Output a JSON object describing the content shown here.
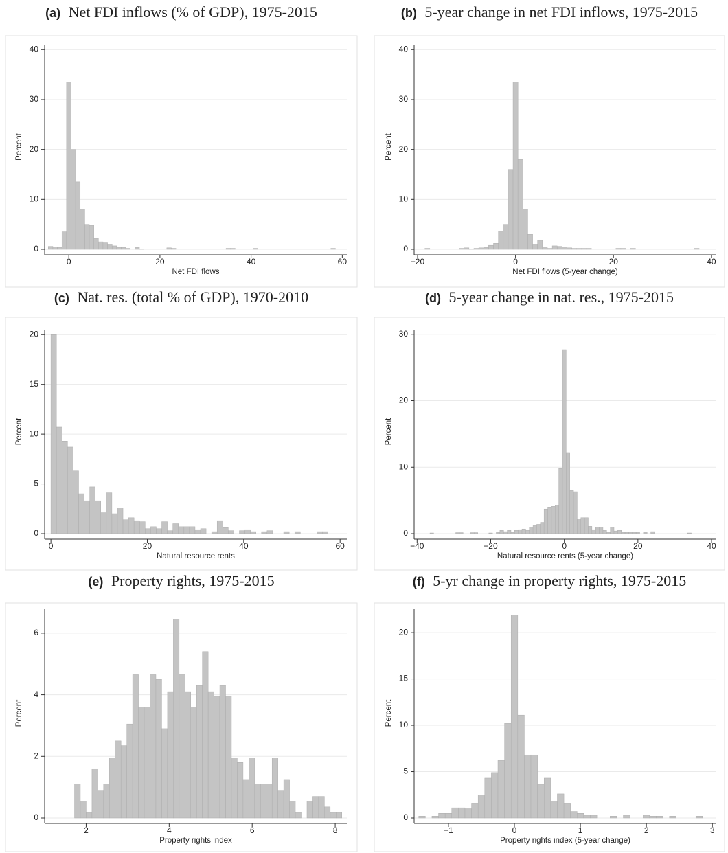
{
  "chart_data": [
    {
      "type": "histogram",
      "label": "(a)",
      "title": "Net FDI inflows (% of GDP), 1975-2015",
      "xlabel": "Net FDI flows",
      "ylabel": "Percent",
      "color": "#c4c4c4",
      "grid": true,
      "bins": [
        -4.5,
        -3.5,
        -2.5,
        -1.5,
        -0.5,
        0.5,
        1.5,
        2.5,
        3.5,
        4.5,
        5.5,
        6.5,
        7.5,
        8.5,
        9.5,
        10.5,
        11.5,
        12.5,
        13.5,
        14.5,
        15.5,
        16.5,
        17.5,
        18.5,
        19.5,
        20.5,
        21.5,
        22.5,
        23.5,
        24.5,
        25.5,
        26.5,
        27.5,
        28.5,
        29.5,
        30.5,
        31.5,
        32.5,
        33.5,
        34.5,
        35.5,
        36.5,
        37.5,
        38.5,
        39.5,
        40.5,
        41.5,
        42.5,
        43.5,
        44.5,
        45.5,
        46.5,
        47.5,
        48.5,
        49.5,
        50.5,
        51.5,
        52.5,
        53.5,
        54.5,
        55.5,
        56.5,
        57.5,
        58.5
      ],
      "counts": [
        0.6,
        0.5,
        0.4,
        3.5,
        33.5,
        20,
        13.5,
        8,
        5,
        4.8,
        2.2,
        1.5,
        1.3,
        1,
        0.7,
        0.4,
        0.4,
        0.2,
        0,
        0.4,
        0.1,
        0,
        0,
        0,
        0,
        0,
        0.3,
        0.2,
        0,
        0,
        0,
        0,
        0,
        0,
        0,
        0,
        0,
        0,
        0,
        0.2,
        0.2,
        0,
        0,
        0,
        0,
        0.2,
        0,
        0,
        0,
        0,
        0,
        0,
        0,
        0,
        0,
        0,
        0,
        0,
        0,
        0,
        0,
        0,
        0.2
      ],
      "xlim": [
        -5.3,
        61
      ],
      "ylim": [
        0,
        41
      ],
      "xticks": [
        0,
        20,
        40,
        60
      ],
      "yticks": [
        0,
        10,
        20,
        30,
        40
      ]
    },
    {
      "type": "histogram",
      "label": "(b)",
      "title": "5-year change in net FDI inflows, 1975-2015",
      "xlabel": "Net FDI flows (5-year change)",
      "ylabel": "Percent",
      "color": "#c4c4c4",
      "grid": true,
      "bins": [
        -18.5,
        -17.5,
        -16.5,
        -15.5,
        -14.5,
        -13.5,
        -12.5,
        -11.5,
        -10.5,
        -9.5,
        -8.5,
        -7.5,
        -6.5,
        -5.5,
        -4.5,
        -3.5,
        -2.5,
        -1.5,
        -0.5,
        0.5,
        1.5,
        2.5,
        3.5,
        4.5,
        5.5,
        6.5,
        7.5,
        8.5,
        9.5,
        10.5,
        11.5,
        12.5,
        13.5,
        14.5,
        15.5,
        16.5,
        17.5,
        18.5,
        19.5,
        20.5,
        21.5,
        22.5,
        23.5,
        24.5,
        25.5,
        26.5,
        27.5,
        28.5,
        29.5,
        30.5,
        31.5,
        32.5,
        33.5,
        34.5,
        35.5,
        36.5,
        37.5
      ],
      "counts": [
        0.2,
        0,
        0,
        0,
        0,
        0,
        0,
        0.2,
        0.3,
        0.1,
        0.2,
        0.3,
        0.4,
        0.8,
        1.2,
        3.6,
        5,
        16,
        33.5,
        18,
        8,
        3,
        1,
        1.8,
        0.5,
        0.2,
        0.7,
        0.6,
        0.5,
        0.3,
        0.2,
        0.2,
        0.2,
        0.2,
        0,
        0,
        0,
        0,
        0,
        0.2,
        0.2,
        0,
        0.2,
        0,
        0,
        0,
        0,
        0,
        0,
        0,
        0,
        0,
        0,
        0,
        0,
        0.2
      ],
      "xlim": [
        -20.7,
        41
      ],
      "ylim": [
        0,
        41
      ],
      "xticks": [
        {
          "value": -20,
          "label": "−20"
        },
        0,
        20,
        40
      ],
      "yticks": [
        0,
        10,
        20,
        30,
        40
      ]
    },
    {
      "type": "histogram",
      "label": "(c)",
      "title": "Nat. res. (total % of GDP), 1970-2010",
      "xlabel": "Natural resource rents",
      "ylabel": "Percent",
      "color": "#c4c4c4",
      "grid": true,
      "bins": [
        0,
        1.15,
        2.3,
        3.45,
        4.6,
        5.75,
        6.9,
        8.05,
        9.2,
        10.35,
        11.5,
        12.65,
        13.8,
        14.95,
        16.1,
        17.25,
        18.4,
        19.55,
        20.7,
        21.85,
        23,
        24.15,
        25.3,
        26.45,
        27.6,
        28.75,
        29.9,
        31.05,
        32.2,
        33.35,
        34.5,
        35.65,
        36.8,
        37.95,
        39.1,
        40.25,
        41.4,
        42.55,
        43.7,
        44.85,
        46,
        47.15,
        48.3,
        49.45,
        50.6,
        51.75,
        52.9,
        54.05,
        55.2,
        56.35,
        57.5
      ],
      "counts": [
        20,
        10.7,
        9.3,
        8.7,
        6.3,
        4,
        3.3,
        4.7,
        3.3,
        2.1,
        4.1,
        2,
        2.6,
        1.4,
        1.6,
        1.3,
        1.2,
        0.5,
        0.7,
        0.5,
        1.2,
        0.3,
        1,
        0.7,
        0.7,
        0.7,
        0.4,
        0.5,
        0,
        0.2,
        1.3,
        0.6,
        0.3,
        0,
        0.3,
        0.4,
        0.2,
        0,
        0.2,
        0.3,
        0,
        0,
        0.2,
        0,
        0.2,
        0,
        0,
        0,
        0.2,
        0.2
      ],
      "xlim": [
        -1.3,
        61.4
      ],
      "ylim": [
        0,
        20.5
      ],
      "xticks": [
        0,
        20,
        40,
        60
      ],
      "yticks": [
        0,
        5,
        10,
        15,
        20
      ]
    },
    {
      "type": "histogram",
      "label": "(d)",
      "title": "5-year change in nat. res., 1975-2015",
      "xlabel": "Natural resource rents (5-year change)",
      "ylabel": "Percent",
      "color": "#c4c4c4",
      "grid": true,
      "bins": [
        -36.5,
        -35.5,
        -34.5,
        -33.5,
        -32.5,
        -31.5,
        -30.5,
        -29.5,
        -28.5,
        -27.5,
        -26.5,
        -25.5,
        -24.5,
        -23.5,
        -22.5,
        -21.5,
        -20.5,
        -19.5,
        -18.5,
        -17.5,
        -16.5,
        -15.5,
        -14.5,
        -13.5,
        -12.5,
        -11.5,
        -10.5,
        -9.5,
        -8.5,
        -7.5,
        -6.5,
        -5.5,
        -4.5,
        -3.5,
        -2.5,
        -1.5,
        -0.5,
        0.5,
        1.5,
        2.5,
        3.5,
        4.5,
        5.5,
        6.5,
        7.5,
        8.5,
        9.5,
        10.5,
        11.5,
        12.5,
        13.5,
        14.5,
        15.5,
        16.5,
        17.5,
        18.5,
        19.5,
        20.5,
        21.5,
        22.5,
        23.5,
        24.5,
        25.5,
        26.5,
        27.5,
        28.5,
        29.5,
        30.5,
        31.5,
        32.5,
        33.5,
        34.5
      ],
      "counts": [
        0.1,
        0,
        0,
        0,
        0,
        0,
        0,
        0.15,
        0.15,
        0,
        0,
        0.15,
        0.15,
        0,
        0,
        0,
        0.1,
        0,
        0.2,
        0.5,
        0.3,
        0.5,
        0.2,
        0.5,
        0.6,
        0.7,
        0.5,
        1,
        1.2,
        1.4,
        1.7,
        3.7,
        4,
        4.1,
        4.3,
        9.8,
        27.7,
        12.2,
        6.5,
        6.3,
        2.2,
        2.4,
        2.4,
        1.1,
        0.6,
        1,
        1,
        0.5,
        0.2,
        1,
        0.4,
        0.5,
        0.2,
        0.2,
        0.2,
        0.2,
        0.2,
        0,
        0.2,
        0,
        0.3,
        0,
        0,
        0,
        0,
        0,
        0,
        0,
        0,
        0,
        0.1
      ],
      "xlim": [
        -40.8,
        41.3
      ],
      "ylim": [
        0,
        30.7
      ],
      "xticks": [
        {
          "value": -40,
          "label": "−40"
        },
        {
          "value": -20,
          "label": "−20"
        },
        0,
        20,
        40
      ],
      "yticks": [
        0,
        10,
        20,
        30
      ]
    },
    {
      "type": "histogram",
      "label": "(e)",
      "title": "Property rights, 1975-2015",
      "xlabel": "Property rights index",
      "ylabel": "Percent",
      "color": "#c4c4c4",
      "grid": true,
      "bins": [
        1.72,
        1.86,
        2,
        2.14,
        2.28,
        2.42,
        2.56,
        2.7,
        2.84,
        2.98,
        3.12,
        3.26,
        3.4,
        3.54,
        3.68,
        3.82,
        3.96,
        4.1,
        4.24,
        4.38,
        4.52,
        4.66,
        4.8,
        4.94,
        5.08,
        5.22,
        5.36,
        5.5,
        5.64,
        5.78,
        5.92,
        6.06,
        6.2,
        6.34,
        6.48,
        6.62,
        6.76,
        6.9,
        7.04,
        7.18,
        7.32,
        7.46,
        7.6,
        7.74,
        7.88,
        8.02,
        8.16
      ],
      "counts": [
        1.1,
        0.55,
        0.18,
        1.6,
        0.9,
        1.1,
        1.95,
        2.5,
        2.35,
        3.05,
        4.65,
        3.6,
        3.6,
        4.65,
        4.5,
        2.9,
        4.1,
        6.45,
        4.65,
        4.1,
        3.6,
        4.3,
        5.4,
        4.1,
        3.95,
        4.3,
        3.95,
        1.95,
        1.8,
        1.25,
        1.95,
        1.1,
        1.1,
        1.1,
        1.95,
        0.9,
        1.25,
        0.55,
        0.18,
        0,
        0.55,
        0.7,
        0.7,
        0.36,
        0.18,
        0.18
      ],
      "xlim": [
        1,
        8.28
      ],
      "ylim": [
        0,
        6.8
      ],
      "xticks": [
        2,
        4,
        6,
        8
      ],
      "yticks": [
        0,
        2,
        4,
        6
      ]
    },
    {
      "type": "histogram",
      "label": "(f)",
      "title": "5-yr change in property rights, 1975-2015",
      "xlabel": "Property rights index (5-year change)",
      "ylabel": "Percent",
      "color": "#c4c4c4",
      "grid": true,
      "bins": [
        -1.45,
        -1.35,
        -1.25,
        -1.15,
        -1.05,
        -0.95,
        -0.85,
        -0.75,
        -0.65,
        -0.55,
        -0.45,
        -0.35,
        -0.25,
        -0.15,
        -0.05,
        0.05,
        0.15,
        0.25,
        0.35,
        0.45,
        0.55,
        0.65,
        0.75,
        0.85,
        0.95,
        1.05,
        1.15,
        1.25,
        1.35,
        1.45,
        1.55,
        1.65,
        1.75,
        1.85,
        1.95,
        2.05,
        2.15,
        2.25,
        2.35,
        2.45,
        2.55,
        2.65,
        2.75,
        2.85
      ],
      "counts": [
        0.2,
        0,
        0.2,
        0.5,
        0.5,
        1.1,
        1.1,
        1,
        1.6,
        2.5,
        4.3,
        4.9,
        6.2,
        10.2,
        21.9,
        11.1,
        6.8,
        6.8,
        3.6,
        4.3,
        1.8,
        2.6,
        1.6,
        0.7,
        0.5,
        0.3,
        0.3,
        0,
        0,
        0.2,
        0,
        0.3,
        0,
        0,
        0.3,
        0.2,
        0.2,
        0,
        0.2,
        0,
        0,
        0,
        0.2
      ],
      "xlim": [
        -1.52,
        3.06
      ],
      "ylim": [
        0,
        22.6
      ],
      "xticks": [
        {
          "value": -1,
          "label": "−1"
        },
        0,
        1,
        2,
        3
      ],
      "yticks": [
        0,
        5,
        10,
        15,
        20
      ]
    }
  ]
}
